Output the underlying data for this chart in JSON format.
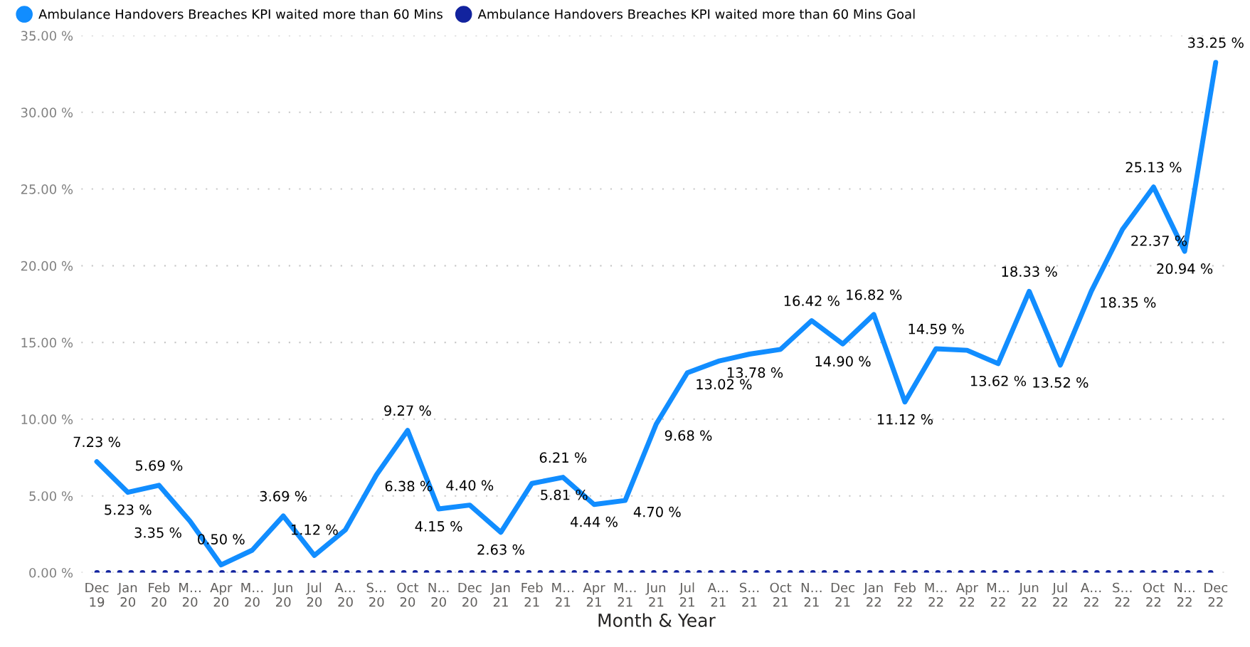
{
  "chart_data": {
    "type": "line",
    "xlabel": "Month & Year",
    "categories": [
      "Dec\n19",
      "Jan\n20",
      "Feb\n20",
      "M…\n20",
      "Apr\n20",
      "M…\n20",
      "Jun\n20",
      "Jul\n20",
      "A…\n20",
      "S…\n20",
      "Oct\n20",
      "N…\n20",
      "Dec\n20",
      "Jan\n21",
      "Feb\n21",
      "M…\n21",
      "Apr\n21",
      "M…\n21",
      "Jun\n21",
      "Jul\n21",
      "A…\n21",
      "S…\n21",
      "Oct\n21",
      "N…\n21",
      "Dec\n21",
      "Jan\n22",
      "Feb\n22",
      "M…\n22",
      "Apr\n22",
      "M…\n22",
      "Jun\n22",
      "Jul\n22",
      "A…\n22",
      "S…\n22",
      "Oct\n22",
      "N…\n22",
      "Dec\n22"
    ],
    "series": [
      {
        "name": "Ambulance Handovers Breaches KPI waited more than 60 Mins",
        "color": "#118dff",
        "line_style": "solid",
        "values": [
          7.23,
          5.23,
          5.69,
          3.35,
          0.5,
          1.46,
          3.69,
          1.12,
          2.79,
          6.38,
          9.27,
          4.15,
          4.4,
          2.63,
          5.81,
          6.21,
          4.44,
          4.7,
          9.68,
          13.02,
          13.78,
          14.24,
          14.55,
          16.42,
          14.9,
          16.82,
          11.12,
          14.59,
          14.49,
          13.62,
          18.33,
          13.52,
          18.35,
          22.37,
          25.13,
          20.94,
          33.25
        ],
        "value_labels": [
          "7.23 %",
          "5.23 %",
          "5.69 %",
          "3.35 %",
          "0.50 %",
          null,
          "3.69 %",
          "1.12 %",
          null,
          "6.38 %",
          "9.27 %",
          "4.15 %",
          "4.40 %",
          "2.63 %",
          "5.81 %",
          "6.21 %",
          "4.44 %",
          "4.70 %",
          "9.68 %",
          "13.02 %",
          "13.78 %",
          null,
          null,
          "16.42 %",
          "14.90 %",
          "16.82 %",
          "11.12 %",
          "14.59 %",
          null,
          "13.62 %",
          "18.33 %",
          "13.52 %",
          "18.35 %",
          "22.37 %",
          "25.13 %",
          "20.94 %",
          "33.25 %"
        ]
      },
      {
        "name": "Ambulance Handovers Breaches KPI waited more than 60 Mins Goal",
        "color": "#12239e",
        "line_style": "dotted",
        "values": [
          0,
          0,
          0,
          0,
          0,
          0,
          0,
          0,
          0,
          0,
          0,
          0,
          0,
          0,
          0,
          0,
          0,
          0,
          0,
          0,
          0,
          0,
          0,
          0,
          0,
          0,
          0,
          0,
          0,
          0,
          0,
          0,
          0,
          0,
          0,
          0,
          0
        ]
      }
    ],
    "ylim": [
      0,
      35
    ],
    "yticks": [
      {
        "value": 0,
        "label": "0.00 %"
      },
      {
        "value": 5,
        "label": "5.00 %"
      },
      {
        "value": 10,
        "label": "10.00 %"
      },
      {
        "value": 15,
        "label": "15.00 %"
      },
      {
        "value": 20,
        "label": "20.00 %"
      },
      {
        "value": 25,
        "label": "25.00 %"
      },
      {
        "value": 30,
        "label": "30.00 %"
      },
      {
        "value": 35,
        "label": "35.00 %"
      }
    ],
    "grid": "y",
    "legend": "top left",
    "marker": "none"
  }
}
